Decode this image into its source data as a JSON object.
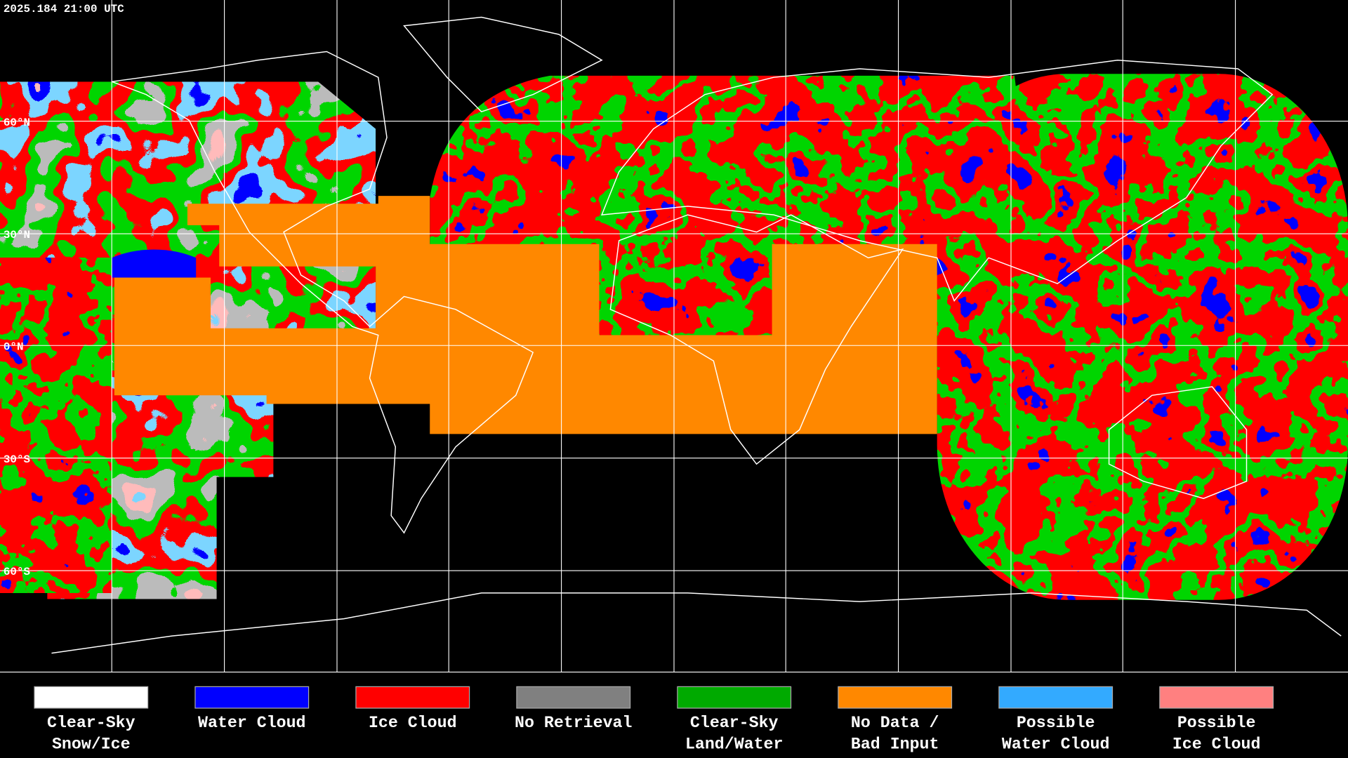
{
  "timestamp": "2025.184 21:00 UTC",
  "lat_labels": [
    "60°N",
    "30°N",
    "0°N",
    "30°S",
    "60°S"
  ],
  "legend": [
    {
      "color": "#ffffff",
      "label": [
        "Clear-Sky",
        "Snow/Ice"
      ]
    },
    {
      "color": "#0000ff",
      "label": [
        "Water Cloud"
      ]
    },
    {
      "color": "#ff0000",
      "label": [
        "Ice Cloud"
      ]
    },
    {
      "color": "#808080",
      "label": [
        "No Retrieval"
      ]
    },
    {
      "color": "#00aa00",
      "label": [
        "Clear-Sky",
        "Land/Water"
      ]
    },
    {
      "color": "#ff8800",
      "label": [
        "No Data /",
        "Bad Input"
      ]
    },
    {
      "color": "#33aaff",
      "label": [
        "Possible",
        "Water Cloud"
      ]
    },
    {
      "color": "#ff8080",
      "label": [
        "Possible",
        "Ice Cloud"
      ]
    }
  ]
}
